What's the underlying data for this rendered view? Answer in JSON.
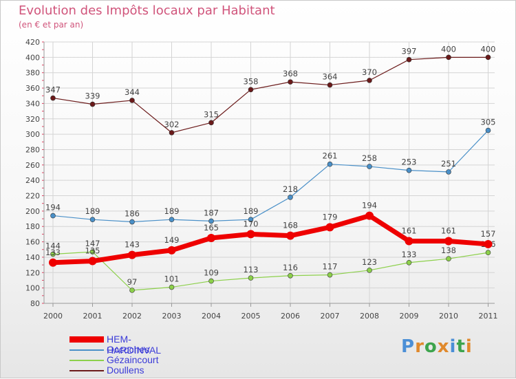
{
  "title": "Evolution des Impôts locaux par Habitant",
  "subtitle": "(en € et par an)",
  "brand": "Proxiti",
  "chart_data": {
    "type": "line",
    "title": "Evolution des Impôts locaux par Habitant",
    "subtitle": "(en € et par an)",
    "x": [
      "2000",
      "2001",
      "2002",
      "2003",
      "2004",
      "2005",
      "2006",
      "2007",
      "2008",
      "2009",
      "2010",
      "2011"
    ],
    "ylim": [
      80,
      420
    ],
    "yticks": [
      80,
      100,
      120,
      140,
      160,
      180,
      200,
      220,
      240,
      260,
      280,
      300,
      320,
      340,
      360,
      380,
      400,
      420
    ],
    "grid": true,
    "legend_position": "bottom-left",
    "series": [
      {
        "name": "HEM-HARDINVAL",
        "color": "#ee0000",
        "values": [
          133,
          135,
          143,
          149,
          165,
          170,
          168,
          179,
          194,
          161,
          161,
          157
        ],
        "labels": [
          "133",
          "135",
          "143",
          "149",
          "165",
          "170",
          "168",
          "179",
          "194",
          "161",
          "161",
          "157"
        ]
      },
      {
        "name": "Occoches",
        "color": "#4a90c8",
        "values": [
          194,
          189,
          186,
          189,
          187,
          189,
          218,
          261,
          258,
          253,
          251,
          305
        ],
        "labels": [
          "194",
          "189",
          "186",
          "189",
          "187",
          "189",
          "218",
          "261",
          "258",
          "253",
          "251",
          "305"
        ]
      },
      {
        "name": "Gézaincourt",
        "color": "#8cd04a",
        "values": [
          144,
          147,
          97,
          101,
          109,
          113,
          116,
          117,
          123,
          133,
          138,
          146
        ],
        "labels": [
          "144",
          "147",
          "97",
          "101",
          "109",
          "113",
          "116",
          "117",
          "123",
          "133",
          "138",
          "146"
        ]
      },
      {
        "name": "Doullens",
        "color": "#6b1a1a",
        "values": [
          347,
          339,
          344,
          302,
          315,
          358,
          368,
          364,
          370,
          397,
          400,
          400
        ],
        "labels": [
          "347",
          "339",
          "344",
          "302",
          "315",
          "358",
          "368",
          "364",
          "370",
          "397",
          "400",
          "400"
        ]
      }
    ]
  }
}
